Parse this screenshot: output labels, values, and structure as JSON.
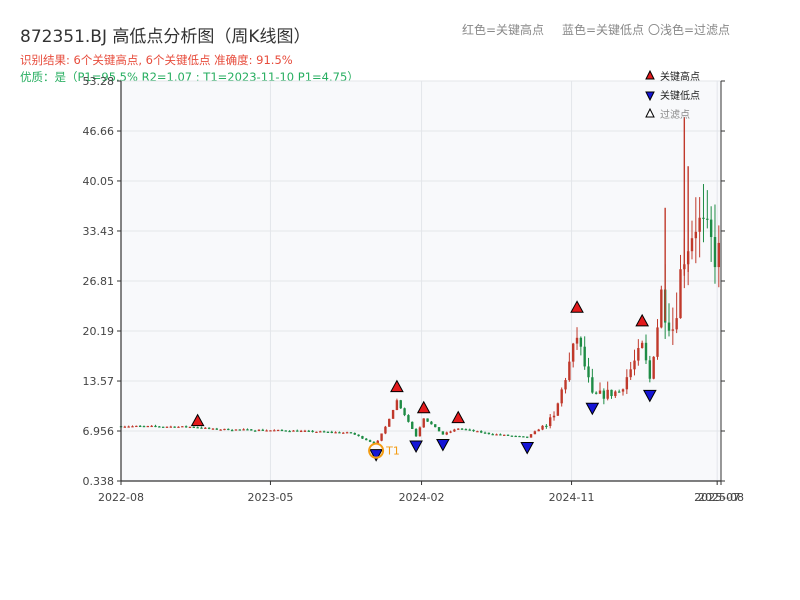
{
  "title": "872351.BJ 高低点分析图（周K线图）",
  "summary_line": "识别结果: 6个关键高点, 6个关键低点  准确度: 91.5%",
  "quality_line": "优质：是（P1=95.5%  R2=1.07 ; T1=2023-11-10 P1=4.75）",
  "top_legend": [
    {
      "text": "红色=关键高点"
    },
    {
      "text": "蓝色=关键低点"
    },
    {
      "text": "〇浅色=过滤点"
    }
  ],
  "colors": {
    "up": "#c0392b",
    "down": "#1e8c45",
    "high_marker": "#e31a1c",
    "low_marker": "#1515d6",
    "start_circle": "#f39c12",
    "plot_bg": "#f8f9fb",
    "grid": "#e3e6ea",
    "axis": "#333333"
  },
  "chart_data": {
    "type": "candlestick",
    "title": "872351.BJ 高低点分析图（周K线图）",
    "xlabel": "",
    "ylabel": "",
    "ylim": [
      0.338,
      53.28
    ],
    "yticks": [
      0.338,
      6.956,
      13.57,
      20.19,
      26.81,
      33.43,
      40.05,
      46.66,
      53.28
    ],
    "ytick_labels": [
      "0.338",
      "6.956",
      "13.57",
      "20.19",
      "26.81",
      "33.43",
      "40.05",
      "46.66",
      "53.28"
    ],
    "xlim": [
      "2022-08-01",
      "2025-08-01"
    ],
    "xticks": [
      "2022-08-01",
      "2023-05-01",
      "2024-02-01",
      "2024-11-01",
      "2025-07-25",
      "2025-08-01"
    ],
    "xtick_labels": [
      "2022-08",
      "2023-05",
      "2024-02",
      "2024-11",
      "2025-07",
      "2025-08"
    ],
    "grid": true,
    "legend_position": "top-right",
    "legend": [
      {
        "label": "关键高点",
        "symbol": "triangle-up",
        "color": "#e31a1c"
      },
      {
        "label": "关键低点",
        "symbol": "triangle-down",
        "color": "#1515d6"
      },
      {
        "label": "过滤点",
        "symbol": "triangle-up-outline",
        "color": "#888888"
      }
    ],
    "key_highs": [
      {
        "date": "2022-12-19",
        "value": 7.4
      },
      {
        "date": "2023-12-18",
        "value": 11.9
      },
      {
        "date": "2024-02-05",
        "value": 9.1
      },
      {
        "date": "2024-04-08",
        "value": 7.8
      },
      {
        "date": "2024-11-11",
        "value": 22.4
      },
      {
        "date": "2025-03-10",
        "value": 20.6
      }
    ],
    "key_lows": [
      {
        "date": "2023-11-10",
        "value": 4.75
      },
      {
        "date": "2024-01-22",
        "value": 5.9
      },
      {
        "date": "2024-03-11",
        "value": 6.1
      },
      {
        "date": "2024-08-12",
        "value": 5.7
      },
      {
        "date": "2024-12-09",
        "value": 10.9
      },
      {
        "date": "2025-03-24",
        "value": 12.6
      }
    ],
    "annotations": [
      {
        "text": "T1",
        "date": "2023-11-10",
        "value": 4.75
      }
    ]
  }
}
